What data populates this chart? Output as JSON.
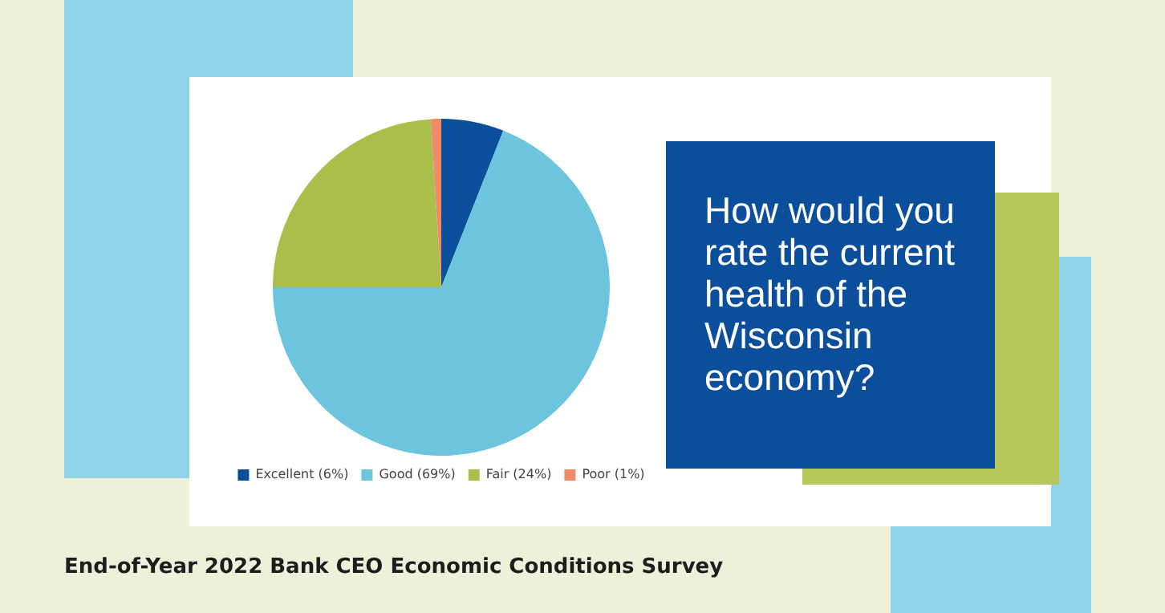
{
  "chart_data": {
    "type": "pie",
    "title": "How would you rate the current health of the Wisconsin economy?",
    "annotations": [
      "End-of-Year 2022 Bank CEO Economic Conditions Survey"
    ],
    "categories": [
      "Excellent (6%)",
      "Good (69%)",
      "Fair (24%)",
      "Poor (1%)"
    ],
    "values": [
      6,
      69,
      24,
      1
    ],
    "colors": [
      "#0b4f9c",
      "#6cc5dc",
      "#a9bf4a",
      "#f08a6a"
    ],
    "legend": "bottom"
  }
}
